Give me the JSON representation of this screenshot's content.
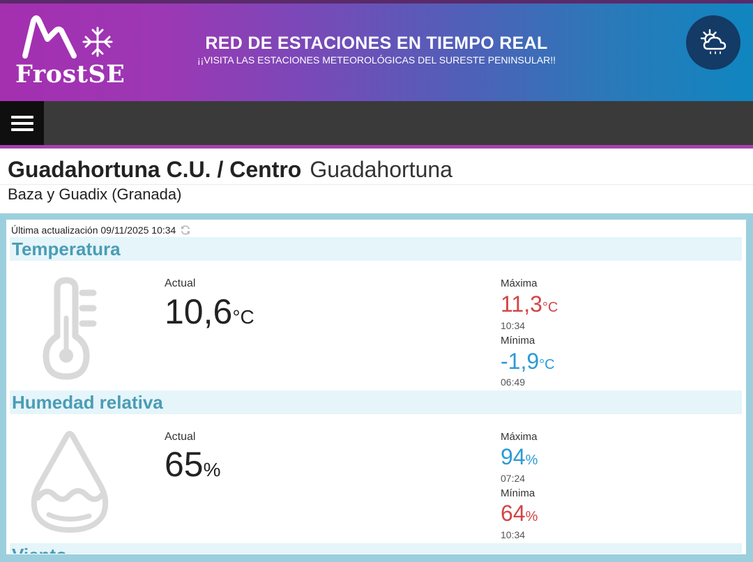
{
  "header": {
    "logo_text": "FrostSE",
    "title": "RED DE ESTACIONES EN TIEMPO REAL",
    "subtitle": "¡¡VISITA LAS ESTACIONES METEOROLÓGICAS DEL SURESTE PENINSULAR!!",
    "weather_icon": "cloud-sun-rain-icon"
  },
  "nav": {
    "menu_icon": "hamburger-menu-icon"
  },
  "station": {
    "name": "Guadahortuna C.U. / Centro",
    "city": "Guadahortuna",
    "region": "Baza y Guadix (Granada)"
  },
  "last_update": {
    "label": "Última actualización 09/11/2025 10:34",
    "icon": "refresh-icon"
  },
  "temperature": {
    "title": "Temperatura",
    "icon": "thermometer-icon",
    "actual_label": "Actual",
    "actual_value": "10,6",
    "actual_unit": "°C",
    "max_label": "Máxima",
    "max_value": "11,3",
    "max_unit": "°C",
    "max_time": "10:34",
    "min_label": "Mínima",
    "min_value": "-1,9",
    "min_unit": "°C",
    "min_time": "06:49"
  },
  "humidity": {
    "title": "Humedad relativa",
    "icon": "water-drop-icon",
    "actual_label": "Actual",
    "actual_value": "65",
    "actual_unit": "%",
    "max_label": "Máxima",
    "max_value": "94",
    "max_unit": "%",
    "max_time": "07:24",
    "min_label": "Mínima",
    "min_value": "64",
    "min_unit": "%",
    "min_time": "10:34"
  },
  "wind": {
    "title": "Viento"
  },
  "colors": {
    "max_temp": "#d34545",
    "min_temp": "#2c9ad6",
    "section_title": "#4a9db4",
    "section_bg": "#e5f5fa"
  }
}
